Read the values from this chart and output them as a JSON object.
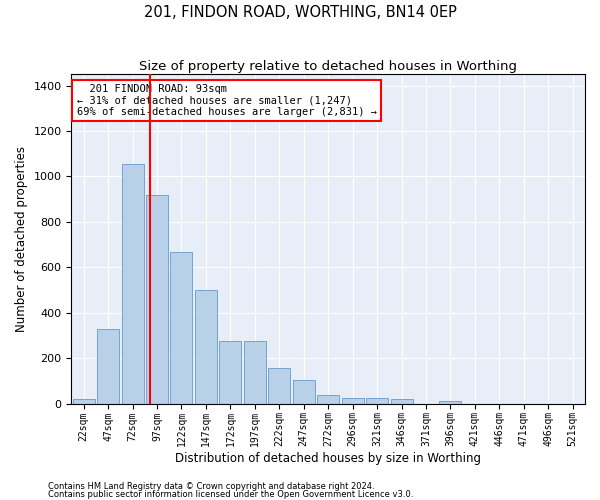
{
  "title": "201, FINDON ROAD, WORTHING, BN14 0EP",
  "subtitle": "Size of property relative to detached houses in Worthing",
  "xlabel": "Distribution of detached houses by size in Worthing",
  "ylabel": "Number of detached properties",
  "footnote1": "Contains HM Land Registry data © Crown copyright and database right 2024.",
  "footnote2": "Contains public sector information licensed under the Open Government Licence v3.0.",
  "bar_labels": [
    "22sqm",
    "47sqm",
    "72sqm",
    "97sqm",
    "122sqm",
    "147sqm",
    "172sqm",
    "197sqm",
    "222sqm",
    "247sqm",
    "272sqm",
    "296sqm",
    "321sqm",
    "346sqm",
    "371sqm",
    "396sqm",
    "421sqm",
    "446sqm",
    "471sqm",
    "496sqm",
    "521sqm"
  ],
  "bar_values": [
    20,
    330,
    1055,
    920,
    665,
    500,
    275,
    275,
    155,
    103,
    38,
    25,
    25,
    18,
    0,
    12,
    0,
    0,
    0,
    0,
    0
  ],
  "bar_color": "#b8d0e8",
  "bar_edge_color": "#6699cc",
  "vline_x": 2.72,
  "vline_color": "red",
  "annotation_title": "201 FINDON ROAD: 93sqm",
  "annotation_line2": "← 31% of detached houses are smaller (1,247)",
  "annotation_line3": "69% of semi-detached houses are larger (2,831) →",
  "ylim": [
    0,
    1450
  ],
  "yticks": [
    0,
    200,
    400,
    600,
    800,
    1000,
    1200,
    1400
  ],
  "background_color": "#e8eef8",
  "grid_color": "#ffffff"
}
